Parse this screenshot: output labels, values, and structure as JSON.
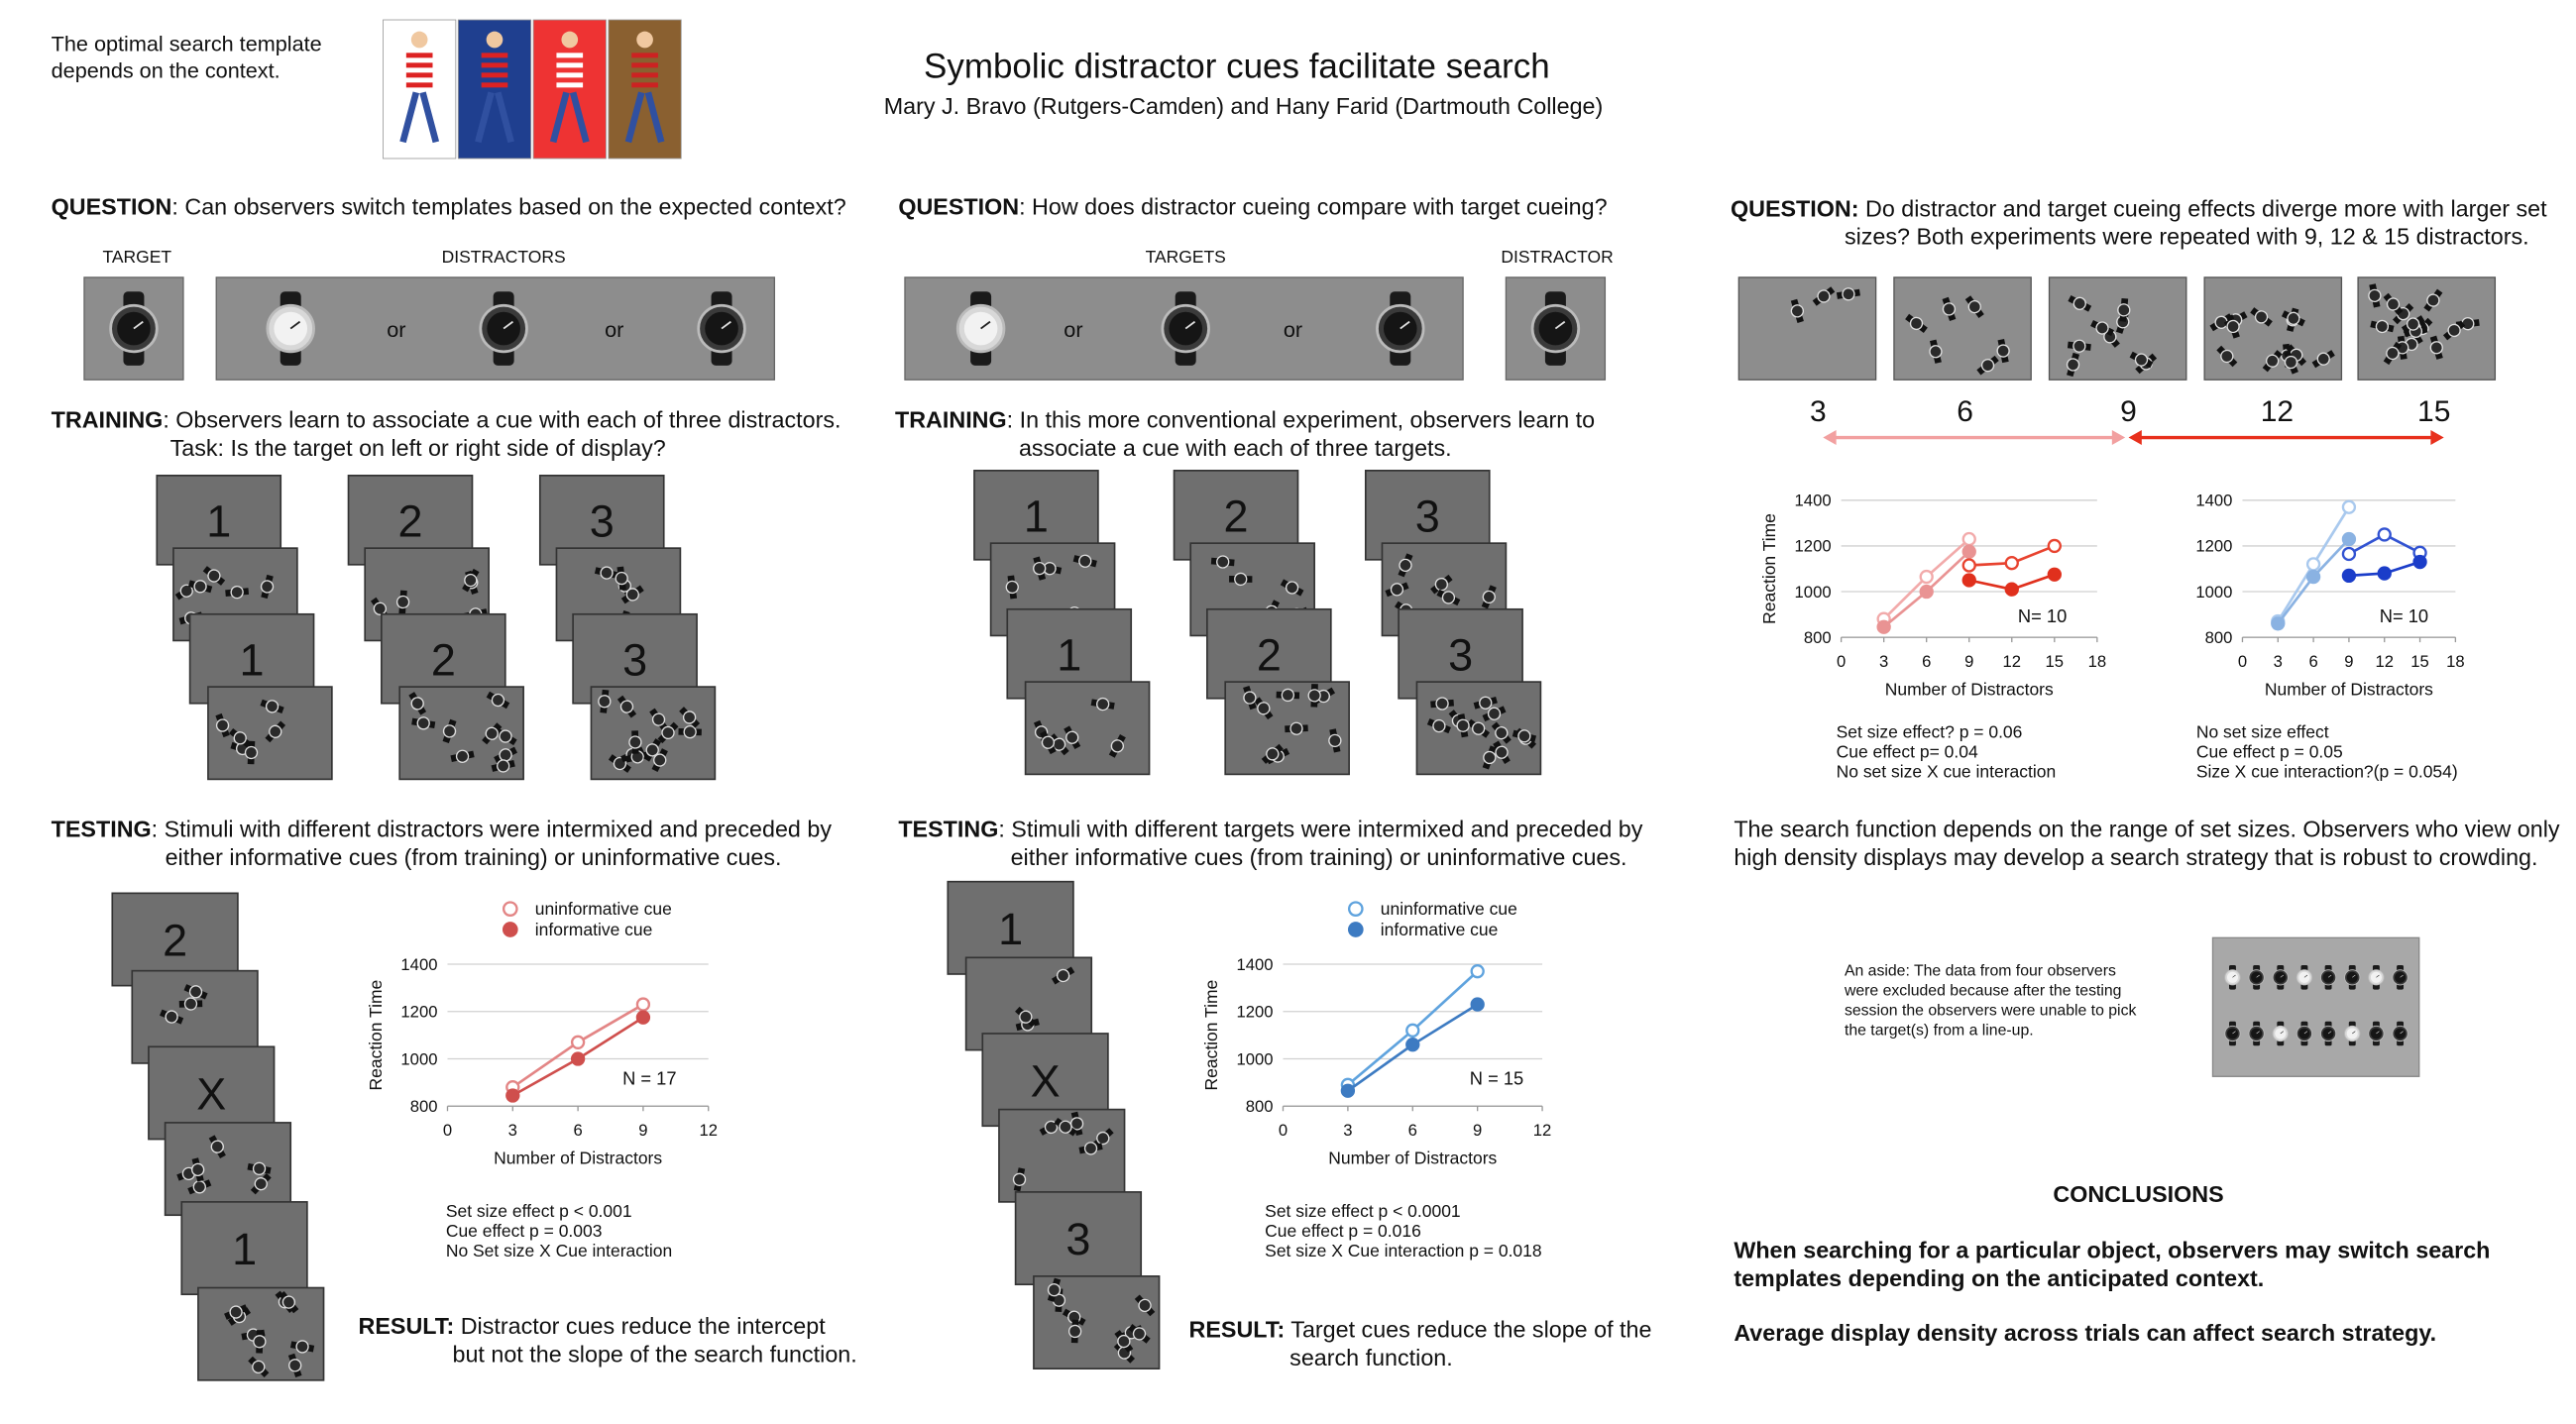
{
  "header": {
    "intro": [
      "The optimal search template",
      "depends on the context."
    ],
    "title": "Symbolic distractor cues facilitate search",
    "authors": "Mary J. Bravo (Rutgers-Camden) and Hany Farid (Dartmouth College)"
  },
  "distractor_cueing": {
    "question": {
      "label": "QUESTION",
      "text": ":  Can observers switch templates based on the expected context?"
    },
    "target_label": "TARGET",
    "distractors_label": "DISTRACTORS",
    "or": [
      "or",
      "or"
    ],
    "training": {
      "label": "TRAINING",
      "lines": [
        ": Observers learn to associate a cue with each of three distractors.",
        "Task: Is the target on left or right side of display?"
      ],
      "cues": [
        "1",
        "2",
        "3",
        "1",
        "2",
        "3"
      ]
    },
    "testing": {
      "label": "TESTING",
      "lines": [
        ": Stimuli with different distractors were intermixed and preceded by",
        "either informative cues (from training) or uninformative cues."
      ],
      "cues": [
        "2",
        "X",
        "1"
      ]
    },
    "chart": {
      "type": "line",
      "x_label": "Number of Distractors",
      "y_label": "Reaction Time",
      "annotation": "N = 17",
      "legend": "top",
      "x": [
        3,
        6,
        9
      ],
      "series": [
        {
          "name": "uninformative cue",
          "color": "#e38585",
          "filled": false,
          "values": [
            880,
            1070,
            1230
          ]
        },
        {
          "name": "informative cue",
          "color": "#cf4f4d",
          "filled": true,
          "values": [
            845,
            1000,
            1175
          ]
        }
      ],
      "xlim": [
        0,
        12
      ],
      "xticks": [
        0,
        3,
        6,
        9,
        12
      ],
      "ylim": [
        800,
        1400
      ],
      "yticks": [
        800,
        1000,
        1200,
        1400
      ],
      "grid": true
    },
    "stats": [
      "Set size effect p < 0.001",
      "Cue effect p = 0.003",
      "No Set size X Cue interaction"
    ],
    "result": {
      "label": "RESULT:",
      "lines": [
        " Distractor cues reduce the intercept",
        "but not the slope of the search function."
      ]
    }
  },
  "target_cueing": {
    "question": {
      "label": "QUESTION",
      "text": ": How does distractor cueing compare with target cueing?"
    },
    "targets_label": "TARGETS",
    "distractor_label": "DISTRACTOR",
    "or": [
      "or",
      "or"
    ],
    "training": {
      "label": "TRAINING",
      "lines": [
        ": In this more conventional experiment, observers learn to",
        "associate a cue with each of three targets."
      ],
      "cues": [
        "1",
        "2",
        "3",
        "1",
        "2",
        "3"
      ]
    },
    "testing": {
      "label": "TESTING",
      "lines": [
        ": Stimuli with different targets were intermixed and preceded by",
        "either informative cues (from training) or uninformative cues."
      ],
      "cues": [
        "1",
        "X",
        "3"
      ]
    },
    "chart": {
      "type": "line",
      "x_label": "Number of Distractors",
      "y_label": "Reaction Time",
      "annotation": "N = 15",
      "legend": "top",
      "x": [
        3,
        6,
        9
      ],
      "series": [
        {
          "name": "uninformative cue",
          "color": "#5fa3de",
          "filled": false,
          "values": [
            890,
            1120,
            1370
          ]
        },
        {
          "name": "informative cue",
          "color": "#3d7bc2",
          "filled": true,
          "values": [
            865,
            1060,
            1230
          ]
        }
      ],
      "xlim": [
        0,
        12
      ],
      "xticks": [
        0,
        3,
        6,
        9,
        12
      ],
      "ylim": [
        800,
        1400
      ],
      "yticks": [
        800,
        1000,
        1200,
        1400
      ],
      "grid": true
    },
    "stats": [
      "Set size effect p < 0.0001",
      "Cue effect p = 0.016",
      "Set size X Cue interaction p = 0.018"
    ],
    "result": {
      "label": "RESULT:",
      "lines": [
        " Target cues reduce the slope of the",
        "search function."
      ]
    }
  },
  "set_size": {
    "question": {
      "label": "QUESTION:",
      "lines": [
        "  Do distractor and target cueing effects diverge more with larger set",
        "sizes?  Both experiments were repeated with 9, 12 & 15 distractors."
      ]
    },
    "set_sizes": [
      3,
      6,
      9,
      12,
      15
    ],
    "charts": [
      {
        "type": "line",
        "x_label": "Number of Distractors",
        "y_label": "Reaction Time",
        "annotation": "N= 10",
        "series": [
          {
            "color": "#f2aaaa",
            "filled": false,
            "x": [
              3,
              6,
              9
            ],
            "values": [
              880,
              1065,
              1230
            ]
          },
          {
            "color": "#e99393",
            "filled": true,
            "x": [
              3,
              6,
              9
            ],
            "values": [
              845,
              1000,
              1175
            ]
          },
          {
            "color": "#e8432f",
            "filled": false,
            "x": [
              9,
              12,
              15
            ],
            "values": [
              1115,
              1125,
              1200
            ]
          },
          {
            "color": "#e0301d",
            "filled": true,
            "x": [
              9,
              12,
              15
            ],
            "values": [
              1050,
              1010,
              1075
            ]
          }
        ],
        "xlim": [
          0,
          18
        ],
        "xticks": [
          0,
          3,
          6,
          9,
          12,
          15,
          18
        ],
        "ylim": [
          800,
          1400
        ],
        "yticks": [
          800,
          1000,
          1200,
          1400
        ],
        "grid": true
      },
      {
        "type": "line",
        "x_label": "Number of Distractors",
        "annotation": "N= 10",
        "series": [
          {
            "color": "#a9c9ee",
            "filled": false,
            "x": [
              3,
              6,
              9
            ],
            "values": [
              870,
              1120,
              1370
            ]
          },
          {
            "color": "#8ab2e2",
            "filled": true,
            "x": [
              3,
              6,
              9
            ],
            "values": [
              860,
              1065,
              1230
            ]
          },
          {
            "color": "#3253d2",
            "filled": false,
            "x": [
              9,
              12,
              15
            ],
            "values": [
              1165,
              1250,
              1170
            ]
          },
          {
            "color": "#1b3dc9",
            "filled": true,
            "x": [
              9,
              12,
              15
            ],
            "values": [
              1070,
              1080,
              1130
            ]
          }
        ],
        "xlim": [
          0,
          18
        ],
        "xticks": [
          0,
          3,
          6,
          9,
          12,
          15,
          18
        ],
        "ylim": [
          800,
          1400
        ],
        "yticks": [
          800,
          1000,
          1200,
          1400
        ],
        "grid": true
      }
    ],
    "stats": [
      [
        "Set size effect? p = 0.06",
        "Cue effect p= 0.04",
        "No set size X cue interaction"
      ],
      [
        "No set size effect",
        "Cue effect p = 0.05",
        "Size X cue interaction?(p = 0.054)"
      ]
    ],
    "discussion": [
      "The search function depends on the range of set sizes. Observers who view only",
      "high density displays may develop a search strategy that is robust to crowding."
    ],
    "aside": [
      "An aside: The data from four observers",
      "were excluded because after the testing",
      "session the observers were unable to pick",
      "the target(s) from a line-up."
    ],
    "conclusions": {
      "title": "CONCLUSIONS",
      "lines": [
        "When searching for a particular object, observers may switch search",
        "templates depending on the anticipated context.",
        "Average display density across trials can affect search strategy."
      ]
    }
  }
}
